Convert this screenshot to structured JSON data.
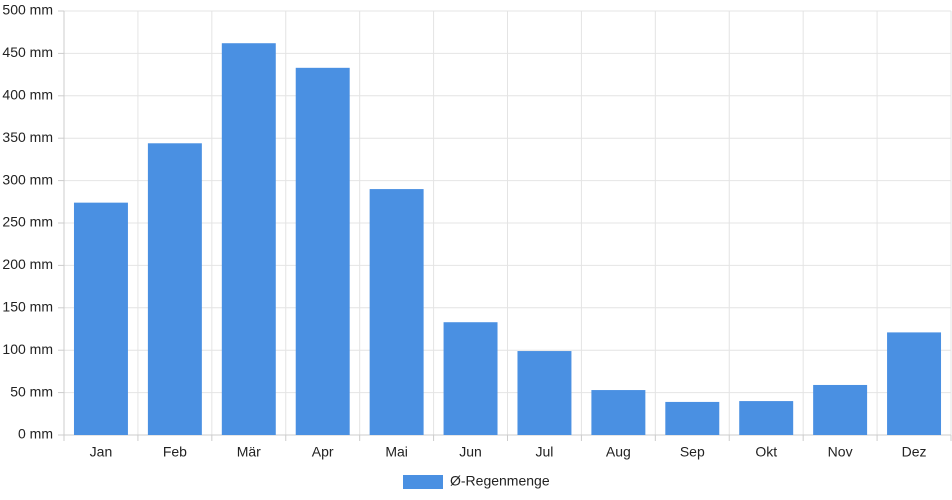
{
  "chart_data": {
    "type": "bar",
    "categories": [
      "Jan",
      "Feb",
      "Mär",
      "Apr",
      "Mai",
      "Jun",
      "Jul",
      "Aug",
      "Sep",
      "Okt",
      "Nov",
      "Dez"
    ],
    "series": [
      {
        "name": "Ø-Regenmenge",
        "color": "#4a90e2",
        "values": [
          274,
          344,
          462,
          433,
          290,
          133,
          99,
          53,
          39,
          40,
          59,
          121
        ]
      }
    ],
    "ylim": [
      0,
      500
    ],
    "yticks": [
      {
        "value": 0,
        "label": "0 mm"
      },
      {
        "value": 50,
        "label": "50 mm"
      },
      {
        "value": 100,
        "label": "100 mm"
      },
      {
        "value": 150,
        "label": "150 mm"
      },
      {
        "value": 200,
        "label": "200 mm"
      },
      {
        "value": 250,
        "label": "250 mm"
      },
      {
        "value": 300,
        "label": "300 mm"
      },
      {
        "value": 350,
        "label": "350 mm"
      },
      {
        "value": 400,
        "label": "400 mm"
      },
      {
        "value": 450,
        "label": "450 mm"
      },
      {
        "value": 500,
        "label": "500 mm"
      }
    ],
    "grid": true,
    "legend": "bottom"
  }
}
